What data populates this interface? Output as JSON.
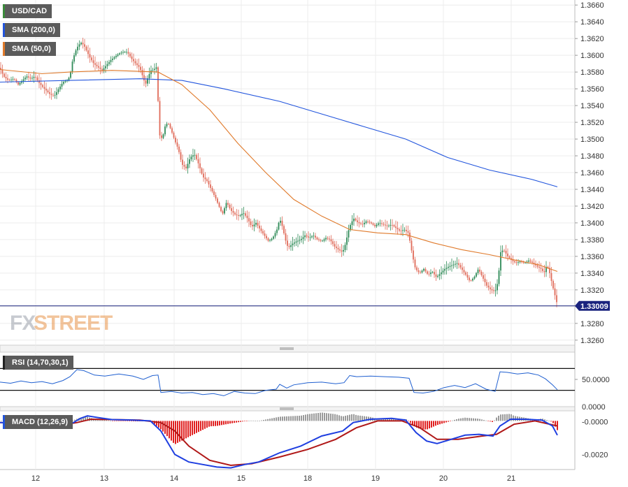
{
  "chart_data": [
    {
      "type": "candlestick",
      "symbol": "USD/CAD",
      "indicators": [
        "SMA (200,0)",
        "SMA (50,0)"
      ],
      "x_tick_labels": [
        "12",
        "13",
        "14",
        "15",
        "18",
        "19",
        "20",
        "21"
      ],
      "y_tick_labels": [
        "1.3660",
        "1.3640",
        "1.3620",
        "1.3600",
        "1.3580",
        "1.3560",
        "1.3540",
        "1.3520",
        "1.3500",
        "1.3480",
        "1.3460",
        "1.3440",
        "1.3420",
        "1.3400",
        "1.3380",
        "1.3360",
        "1.3340",
        "1.3320",
        "1.3300",
        "1.3280",
        "1.3260"
      ],
      "ylim": [
        1.3254,
        1.3666
      ],
      "last_price": "1.33009",
      "last_price_value": 1.33009,
      "close_path": [
        [
          0,
          1.3585
        ],
        [
          5,
          1.3575
        ],
        [
          12,
          1.357
        ],
        [
          20,
          1.3572
        ],
        [
          26,
          1.3565
        ],
        [
          32,
          1.357
        ],
        [
          38,
          1.3575
        ],
        [
          44,
          1.3572
        ],
        [
          50,
          1.3575
        ],
        [
          55,
          1.3568
        ],
        [
          60,
          1.3563
        ],
        [
          66,
          1.3558
        ],
        [
          72,
          1.3553
        ],
        [
          78,
          1.3552
        ],
        [
          84,
          1.356
        ],
        [
          90,
          1.3568
        ],
        [
          96,
          1.357
        ],
        [
          100,
          1.3575
        ],
        [
          104,
          1.3595
        ],
        [
          108,
          1.3605
        ],
        [
          112,
          1.3612
        ],
        [
          116,
          1.3615
        ],
        [
          120,
          1.3612
        ],
        [
          124,
          1.3605
        ],
        [
          128,
          1.3598
        ],
        [
          134,
          1.359
        ],
        [
          140,
          1.3586
        ],
        [
          146,
          1.3582
        ],
        [
          152,
          1.3588
        ],
        [
          158,
          1.3594
        ],
        [
          164,
          1.3598
        ],
        [
          170,
          1.3602
        ],
        [
          176,
          1.3604
        ],
        [
          182,
          1.3604
        ],
        [
          188,
          1.3596
        ],
        [
          194,
          1.359
        ],
        [
          200,
          1.3585
        ],
        [
          204,
          1.3575
        ],
        [
          208,
          1.3565
        ],
        [
          212,
          1.3575
        ],
        [
          216,
          1.3582
        ],
        [
          220,
          1.3583
        ],
        [
          224,
          1.3586
        ],
        [
          228,
          1.3505
        ],
        [
          232,
          1.35
        ],
        [
          236,
          1.3515
        ],
        [
          240,
          1.352
        ],
        [
          245,
          1.351
        ],
        [
          250,
          1.3498
        ],
        [
          255,
          1.3488
        ],
        [
          260,
          1.347
        ],
        [
          266,
          1.3465
        ],
        [
          272,
          1.3478
        ],
        [
          278,
          1.3482
        ],
        [
          284,
          1.347
        ],
        [
          290,
          1.3455
        ],
        [
          296,
          1.345
        ],
        [
          302,
          1.344
        ],
        [
          308,
          1.343
        ],
        [
          313,
          1.342
        ],
        [
          318,
          1.341
        ],
        [
          324,
          1.3425
        ],
        [
          330,
          1.3415
        ],
        [
          336,
          1.341
        ],
        [
          342,
          1.3408
        ],
        [
          348,
          1.3412
        ],
        [
          354,
          1.3405
        ],
        [
          360,
          1.3395
        ],
        [
          366,
          1.34
        ],
        [
          372,
          1.3392
        ],
        [
          378,
          1.3385
        ],
        [
          384,
          1.3378
        ],
        [
          390,
          1.3382
        ],
        [
          396,
          1.3392
        ],
        [
          400,
          1.3405
        ],
        [
          404,
          1.3395
        ],
        [
          408,
          1.338
        ],
        [
          412,
          1.337
        ],
        [
          418,
          1.3375
        ],
        [
          424,
          1.3378
        ],
        [
          430,
          1.338
        ],
        [
          436,
          1.3385
        ],
        [
          442,
          1.3382
        ],
        [
          448,
          1.3385
        ],
        [
          454,
          1.338
        ],
        [
          460,
          1.3378
        ],
        [
          466,
          1.3382
        ],
        [
          472,
          1.338
        ],
        [
          478,
          1.3372
        ],
        [
          484,
          1.3368
        ],
        [
          490,
          1.3365
        ],
        [
          494,
          1.3375
        ],
        [
          498,
          1.339
        ],
        [
          502,
          1.34
        ],
        [
          506,
          1.3405
        ],
        [
          512,
          1.34
        ],
        [
          518,
          1.3398
        ],
        [
          524,
          1.3402
        ],
        [
          530,
          1.34
        ],
        [
          536,
          1.3396
        ],
        [
          542,
          1.34
        ],
        [
          548,
          1.3398
        ],
        [
          554,
          1.3396
        ],
        [
          560,
          1.3398
        ],
        [
          566,
          1.3394
        ],
        [
          572,
          1.339
        ],
        [
          578,
          1.3392
        ],
        [
          584,
          1.3388
        ],
        [
          590,
          1.336
        ],
        [
          594,
          1.3345
        ],
        [
          600,
          1.334
        ],
        [
          606,
          1.3345
        ],
        [
          612,
          1.3338
        ],
        [
          618,
          1.3342
        ],
        [
          624,
          1.3335
        ],
        [
          630,
          1.334
        ],
        [
          636,
          1.3345
        ],
        [
          642,
          1.3348
        ],
        [
          648,
          1.335
        ],
        [
          654,
          1.3352
        ],
        [
          660,
          1.3345
        ],
        [
          666,
          1.3338
        ],
        [
          672,
          1.333
        ],
        [
          678,
          1.3335
        ],
        [
          684,
          1.3345
        ],
        [
          690,
          1.3335
        ],
        [
          696,
          1.3325
        ],
        [
          702,
          1.332
        ],
        [
          708,
          1.3318
        ],
        [
          712,
          1.333
        ],
        [
          716,
          1.3365
        ],
        [
          720,
          1.3368
        ],
        [
          726,
          1.336
        ],
        [
          732,
          1.3355
        ],
        [
          738,
          1.3352
        ],
        [
          744,
          1.3354
        ],
        [
          750,
          1.3352
        ],
        [
          756,
          1.3355
        ],
        [
          762,
          1.3352
        ],
        [
          768,
          1.3348
        ],
        [
          774,
          1.3345
        ],
        [
          778,
          1.334
        ],
        [
          782,
          1.335
        ],
        [
          786,
          1.334
        ],
        [
          790,
          1.3325
        ],
        [
          794,
          1.3312
        ],
        [
          797,
          1.3302
        ]
      ],
      "sma50": [
        [
          0,
          1.3583
        ],
        [
          60,
          1.3578
        ],
        [
          100,
          1.358
        ],
        [
          160,
          1.3582
        ],
        [
          226,
          1.358
        ],
        [
          260,
          1.3565
        ],
        [
          300,
          1.3535
        ],
        [
          340,
          1.3495
        ],
        [
          380,
          1.346
        ],
        [
          420,
          1.3428
        ],
        [
          460,
          1.3408
        ],
        [
          500,
          1.3392
        ],
        [
          540,
          1.3388
        ],
        [
          580,
          1.3386
        ],
        [
          620,
          1.3376
        ],
        [
          660,
          1.3368
        ],
        [
          700,
          1.3362
        ],
        [
          740,
          1.3355
        ],
        [
          770,
          1.335
        ],
        [
          797,
          1.3342
        ]
      ],
      "sma200": [
        [
          0,
          1.3568
        ],
        [
          100,
          1.357
        ],
        [
          200,
          1.3572
        ],
        [
          260,
          1.357
        ],
        [
          320,
          1.356
        ],
        [
          400,
          1.3545
        ],
        [
          460,
          1.353
        ],
        [
          520,
          1.3515
        ],
        [
          580,
          1.35
        ],
        [
          640,
          1.3478
        ],
        [
          700,
          1.3463
        ],
        [
          760,
          1.3452
        ],
        [
          797,
          1.3443
        ]
      ]
    },
    {
      "type": "line",
      "name": "RSI (14,70,30,1)",
      "y_tick_labels": [
        "50.0000",
        "0.0000"
      ],
      "levels": [
        70,
        30
      ],
      "ylim": [
        0,
        100
      ],
      "values": [
        [
          0,
          45
        ],
        [
          15,
          43
        ],
        [
          30,
          47
        ],
        [
          45,
          44
        ],
        [
          60,
          46
        ],
        [
          75,
          42
        ],
        [
          90,
          48
        ],
        [
          100,
          55
        ],
        [
          110,
          68
        ],
        [
          120,
          66
        ],
        [
          135,
          58
        ],
        [
          150,
          56
        ],
        [
          170,
          60
        ],
        [
          190,
          56
        ],
        [
          205,
          50
        ],
        [
          218,
          57
        ],
        [
          226,
          58
        ],
        [
          230,
          26
        ],
        [
          245,
          28
        ],
        [
          260,
          25
        ],
        [
          275,
          26
        ],
        [
          290,
          22
        ],
        [
          305,
          24
        ],
        [
          320,
          20
        ],
        [
          335,
          28
        ],
        [
          350,
          25
        ],
        [
          365,
          24
        ],
        [
          380,
          30
        ],
        [
          395,
          32
        ],
        [
          400,
          41
        ],
        [
          410,
          34
        ],
        [
          420,
          40
        ],
        [
          440,
          44
        ],
        [
          460,
          45
        ],
        [
          480,
          42
        ],
        [
          492,
          44
        ],
        [
          500,
          57
        ],
        [
          510,
          55
        ],
        [
          530,
          56
        ],
        [
          550,
          55
        ],
        [
          570,
          54
        ],
        [
          585,
          52
        ],
        [
          592,
          26
        ],
        [
          605,
          25
        ],
        [
          620,
          28
        ],
        [
          635,
          35
        ],
        [
          650,
          39
        ],
        [
          665,
          35
        ],
        [
          680,
          42
        ],
        [
          695,
          32
        ],
        [
          708,
          28
        ],
        [
          715,
          64
        ],
        [
          725,
          63
        ],
        [
          740,
          60
        ],
        [
          755,
          62
        ],
        [
          770,
          58
        ],
        [
          780,
          51
        ],
        [
          790,
          40
        ],
        [
          797,
          31
        ]
      ]
    },
    {
      "type": "histogram+line",
      "name": "MACD (12,26,9)",
      "y_tick_labels": [
        "-0.0000",
        "-0.0020"
      ],
      "ylim": [
        -0.0029,
        0.0006
      ],
      "macd": [
        [
          0,
          -0.0001
        ],
        [
          30,
          -0.00015
        ],
        [
          60,
          -0.00025
        ],
        [
          90,
          -0.0002
        ],
        [
          105,
          -0.0001
        ],
        [
          115,
          0.00015
        ],
        [
          125,
          0.0003
        ],
        [
          140,
          0.0002
        ],
        [
          160,
          8e-05
        ],
        [
          190,
          5e-05
        ],
        [
          215,
          0.0
        ],
        [
          230,
          -0.0006
        ],
        [
          250,
          -0.002
        ],
        [
          270,
          -0.00245
        ],
        [
          290,
          -0.0026
        ],
        [
          310,
          -0.00275
        ],
        [
          330,
          -0.0028
        ],
        [
          350,
          -0.0026
        ],
        [
          370,
          -0.00245
        ],
        [
          400,
          -0.0019
        ],
        [
          430,
          -0.0015
        ],
        [
          460,
          -0.0009
        ],
        [
          490,
          -0.0006
        ],
        [
          505,
          -0.0001
        ],
        [
          530,
          0.0001
        ],
        [
          560,
          0.00015
        ],
        [
          580,
          5e-05
        ],
        [
          595,
          -0.0007
        ],
        [
          610,
          -0.0012
        ],
        [
          625,
          -0.00135
        ],
        [
          645,
          -0.0011
        ],
        [
          665,
          -0.00085
        ],
        [
          685,
          -0.0008
        ],
        [
          705,
          -0.0009
        ],
        [
          715,
          -0.0003
        ],
        [
          730,
          0.0001
        ],
        [
          750,
          0.0001
        ],
        [
          775,
          5e-05
        ],
        [
          790,
          -0.0003
        ],
        [
          797,
          -0.00085
        ]
      ],
      "signal": [
        [
          0,
          -0.0001
        ],
        [
          40,
          -0.0002
        ],
        [
          80,
          -0.0003
        ],
        [
          110,
          -0.0001
        ],
        [
          130,
          0.0001
        ],
        [
          160,
          8e-05
        ],
        [
          200,
          5e-05
        ],
        [
          230,
          -0.0001
        ],
        [
          250,
          -0.0006
        ],
        [
          270,
          -0.0015
        ],
        [
          300,
          -0.00235
        ],
        [
          330,
          -0.00265
        ],
        [
          360,
          -0.00255
        ],
        [
          400,
          -0.00215
        ],
        [
          440,
          -0.0017
        ],
        [
          480,
          -0.0011
        ],
        [
          510,
          -0.0004
        ],
        [
          540,
          0.0
        ],
        [
          575,
          0.0
        ],
        [
          600,
          -0.0004
        ],
        [
          625,
          -0.0011
        ],
        [
          655,
          -0.0011
        ],
        [
          690,
          -0.0009
        ],
        [
          710,
          -0.0008
        ],
        [
          735,
          -0.0002
        ],
        [
          765,
          0.0
        ],
        [
          797,
          -0.0003
        ]
      ]
    }
  ],
  "watermark": "FXSTREET",
  "colors": {
    "up": "#2e8b57",
    "down": "#e06b5a",
    "sma50": "#e07a2b",
    "sma200": "#2255dd",
    "rsi": "#1f5fd0",
    "macd": "#1f3fe0",
    "signal": "#b01818",
    "hist_pos": "#9a9a9a",
    "hist_neg": "#e02020",
    "price_line": "#1a237e"
  }
}
